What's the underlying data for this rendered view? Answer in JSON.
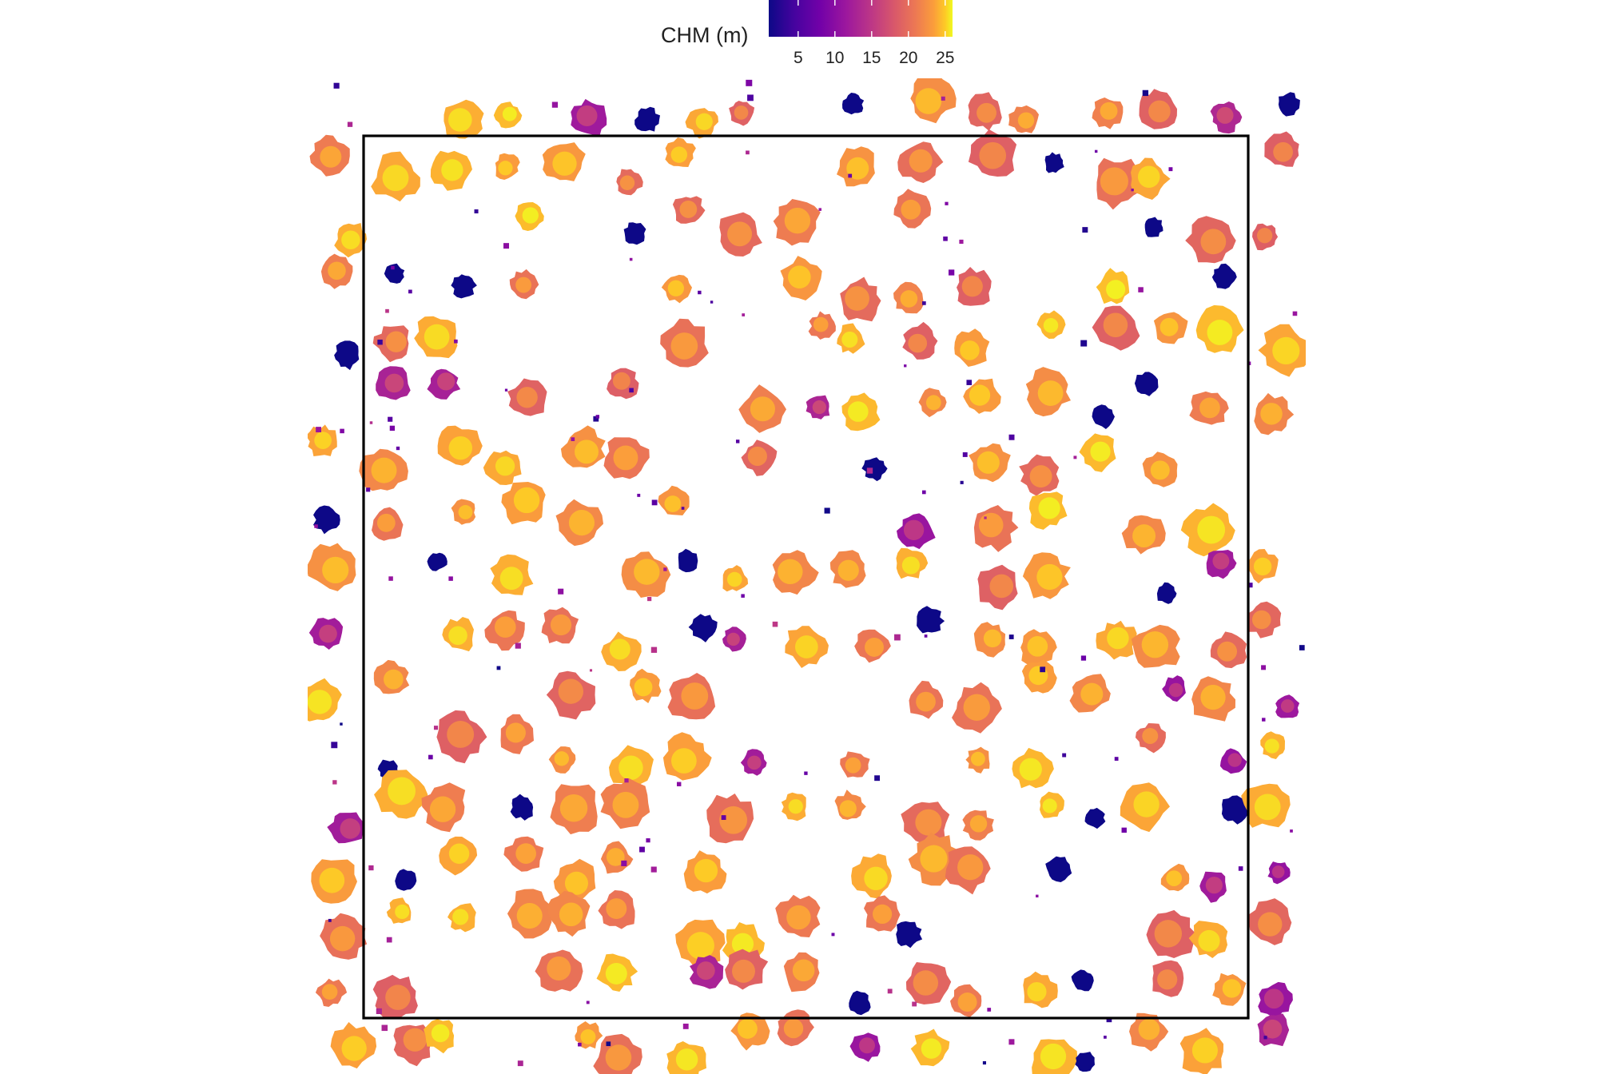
{
  "legend": {
    "title": "CHM (m)",
    "palette": "plasma",
    "ticks": [
      "5",
      "10",
      "15",
      "20",
      "25"
    ],
    "tick_values": [
      5,
      10,
      15,
      20,
      25
    ],
    "range": [
      1,
      26
    ],
    "position": "top"
  },
  "map": {
    "background_color": "#ffffff",
    "boundary_color": "#000000",
    "boundary_shape": "square",
    "nodata_color": "#ffffff",
    "content": "canopy height model raster of tree crowns with plot boundary outline"
  },
  "colors": {
    "low": "#0d0887",
    "mid_low": "#7e03a8",
    "mid": "#cc4778",
    "mid_high": "#f89540",
    "high": "#f0f921"
  }
}
